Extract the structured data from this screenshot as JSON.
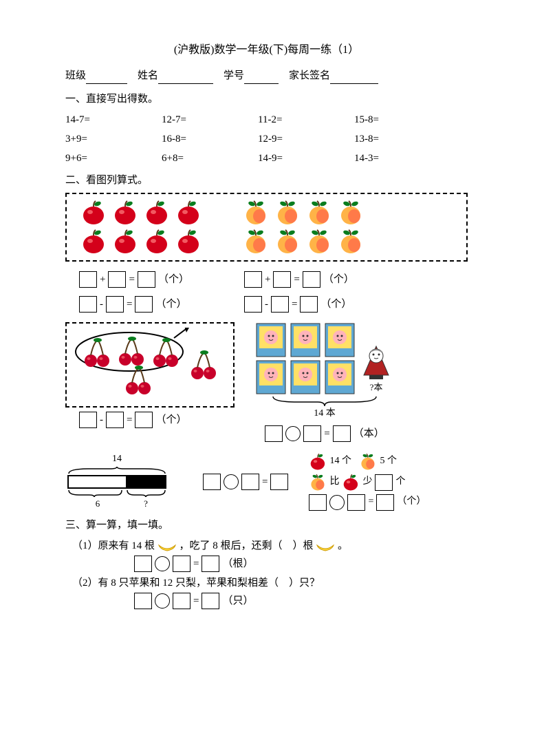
{
  "title": "(沪教版)数学一年级(下)每周一练（1）",
  "info": {
    "class_label": "班级",
    "name_label": "姓名",
    "id_label": "学号",
    "parent_label": "家长签名"
  },
  "section1": {
    "heading": "一、直接写出得数。",
    "rows": [
      [
        "14-7=",
        "12-7=",
        "11-2=",
        "15-8="
      ],
      [
        "3+9=",
        "16-8=",
        "12-9=",
        "13-8="
      ],
      [
        "9+6=",
        "6+8=",
        "14-9=",
        "14-3="
      ]
    ]
  },
  "section2": {
    "heading": "二、看图列算式。",
    "apples_rows": [
      4,
      4
    ],
    "peaches_rows": [
      4,
      4
    ],
    "unit_ge": "（个）",
    "unit_ben": "（本）",
    "cherries_count": 5,
    "books_count": 6,
    "books_label": "14 本",
    "doll_label": "?本",
    "bar_total": "14",
    "bar_left": "6",
    "bar_right": "?",
    "compare_apple": "14 个",
    "compare_peach": "5 个",
    "compare_text1": "比",
    "compare_text2": "少",
    "compare_text3": "个"
  },
  "section3": {
    "heading": "三、算一算，填一填。",
    "q1": "（1）原来有 14 根",
    "q1b": "，吃了 8 根后，还剩（　）根",
    "q1c": "。",
    "q1_unit": "（根）",
    "q2": "（2）有 8 只苹果和 12 只梨，苹果和梨相差（　）只？",
    "q2_unit": "（只）"
  },
  "colors": {
    "apple_red": "#d4001a",
    "apple_leaf": "#0a7d1e",
    "peach_orange": "#ffb347",
    "peach_red": "#ff6b4a",
    "cherry_red": "#c8002a",
    "book_blue": "#5fa8d3",
    "book_yellow": "#ffe066",
    "book_pink": "#ffb3ba",
    "doll_red": "#b22222",
    "banana": "#ffd93d"
  }
}
